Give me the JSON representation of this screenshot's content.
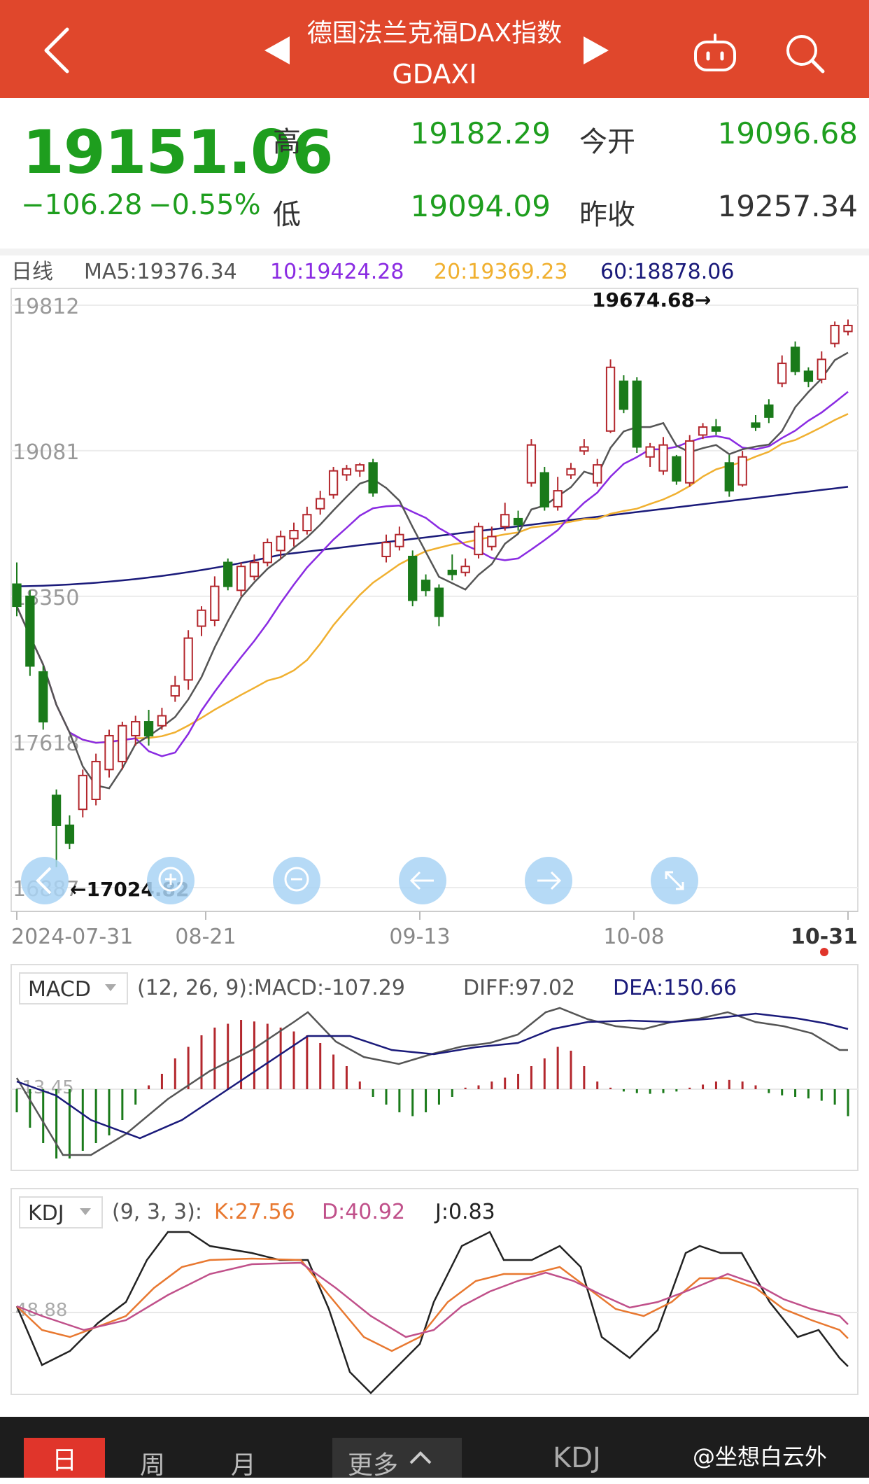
{
  "header": {
    "title": "德国法兰克福DAX指数",
    "code": "GDAXI"
  },
  "quote": {
    "price": "19151.06",
    "change": "−106.28",
    "change_pct": "−0.55%",
    "high_label": "高",
    "high": "19182.29",
    "open_label": "今开",
    "open": "19096.68",
    "low_label": "低",
    "low": "19094.09",
    "prev_close_label": "昨收",
    "prev_close": "19257.34"
  },
  "ma_legend": {
    "period": "日线",
    "ma5": "MA5:19376.34",
    "ma10": "10:19424.28",
    "ma20": "20:19369.23",
    "ma60": "60:18878.06"
  },
  "macd_legend": {
    "name": "MACD",
    "params": "(12, 26, 9):MACD:-107.29",
    "diff": "DIFF:97.02",
    "dea": "DEA:150.66",
    "axis": "-13.45"
  },
  "kdj_legend": {
    "name": "KDJ",
    "params": "(9, 3, 3):",
    "k": "K:27.56",
    "d": "D:40.92",
    "j": "J:0.83",
    "axis": "48.88"
  },
  "tabs": {
    "day": "日",
    "week": "周",
    "month": "月",
    "more": "更多",
    "indicator": "KDJ"
  },
  "watermark": "@坐想白云外",
  "colors": {
    "up": "#b3272d",
    "down": "#1a7a1a",
    "ma5": "#555555",
    "ma10": "#8a2be2",
    "ma20": "#f0b030",
    "ma60": "#1a1a7a"
  },
  "chart_data": {
    "type": "candlestick",
    "y_ticks": [
      19812,
      19081,
      18350,
      17618,
      16887
    ],
    "y_tick_labels": [
      "19812",
      "19081",
      "18350",
      "17618",
      "16887"
    ],
    "ylim": [
      16887,
      19812
    ],
    "x_tick_labels": [
      "2024-07-31",
      "08-21",
      "09-13",
      "10-08",
      "10-31"
    ],
    "x_tick_index": [
      0,
      15,
      32,
      49,
      66
    ],
    "annotations": {
      "high": "19674.68→",
      "low": "←17024.82"
    },
    "candles": [
      [
        18411,
        18300,
        18520,
        18250
      ],
      [
        18350,
        18000,
        18380,
        17950
      ],
      [
        17970,
        17720,
        18000,
        17680
      ],
      [
        17350,
        17200,
        17380,
        16990
      ],
      [
        17200,
        17110,
        17250,
        17080
      ],
      [
        17280,
        17450,
        17480,
        17240
      ],
      [
        17330,
        17520,
        17560,
        17300
      ],
      [
        17480,
        17650,
        17680,
        17440
      ],
      [
        17520,
        17700,
        17720,
        17480
      ],
      [
        17650,
        17720,
        17750,
        17600
      ],
      [
        17720,
        17650,
        17780,
        17600
      ],
      [
        17700,
        17750,
        17790,
        17680
      ],
      [
        17850,
        17900,
        17950,
        17820
      ],
      [
        17930,
        18140,
        18180,
        17880
      ],
      [
        18200,
        18280,
        18300,
        18150
      ],
      [
        18230,
        18400,
        18450,
        18200
      ],
      [
        18520,
        18400,
        18540,
        18380
      ],
      [
        18380,
        18500,
        18520,
        18350
      ],
      [
        18450,
        18520,
        18560,
        18430
      ],
      [
        18520,
        18620,
        18640,
        18500
      ],
      [
        18580,
        18650,
        18680,
        18540
      ],
      [
        18640,
        18680,
        18720,
        18600
      ],
      [
        18680,
        18760,
        18800,
        18660
      ],
      [
        18790,
        18840,
        18880,
        18760
      ],
      [
        18860,
        18980,
        19000,
        18840
      ],
      [
        18960,
        18990,
        19010,
        18930
      ],
      [
        18980,
        19010,
        19020,
        18950
      ],
      [
        19020,
        18870,
        19040,
        18850
      ],
      [
        18550,
        18620,
        18660,
        18520
      ],
      [
        18600,
        18660,
        18700,
        18580
      ],
      [
        18550,
        18330,
        18580,
        18300
      ],
      [
        18430,
        18380,
        18460,
        18350
      ],
      [
        18390,
        18250,
        18410,
        18200
      ],
      [
        18480,
        18460,
        18560,
        18430
      ],
      [
        18470,
        18500,
        18540,
        18450
      ],
      [
        18560,
        18700,
        18720,
        18540
      ],
      [
        18600,
        18650,
        18700,
        18580
      ],
      [
        18700,
        18760,
        18820,
        18680
      ],
      [
        18740,
        18710,
        18780,
        18680
      ],
      [
        18920,
        19110,
        19140,
        18900
      ],
      [
        18970,
        18800,
        19000,
        18780
      ],
      [
        18800,
        18880,
        18950,
        18780
      ],
      [
        18960,
        18990,
        19020,
        18940
      ],
      [
        19080,
        19100,
        19140,
        19060
      ],
      [
        18920,
        19010,
        19040,
        18900
      ],
      [
        19180,
        19500,
        19540,
        19170
      ],
      [
        19430,
        19290,
        19460,
        19270
      ],
      [
        19430,
        19100,
        19450,
        19070
      ],
      [
        19050,
        19100,
        19120,
        19000
      ],
      [
        18980,
        19110,
        19150,
        18960
      ],
      [
        19050,
        18930,
        19060,
        18910
      ],
      [
        18920,
        19130,
        19160,
        18900
      ],
      [
        19160,
        19200,
        19220,
        19140
      ],
      [
        19200,
        19180,
        19240,
        19160
      ],
      [
        19020,
        18880,
        19060,
        18850
      ],
      [
        18910,
        19050,
        19080,
        18900
      ],
      [
        19220,
        19200,
        19260,
        19180
      ],
      [
        19310,
        19250,
        19340,
        19220
      ],
      [
        19420,
        19520,
        19560,
        19400
      ],
      [
        19600,
        19480,
        19630,
        19460
      ],
      [
        19480,
        19430,
        19500,
        19400
      ],
      [
        19440,
        19540,
        19580,
        19420
      ],
      [
        19620,
        19710,
        19730,
        19600
      ],
      [
        19680,
        19710,
        19740,
        19660
      ]
    ]
  }
}
